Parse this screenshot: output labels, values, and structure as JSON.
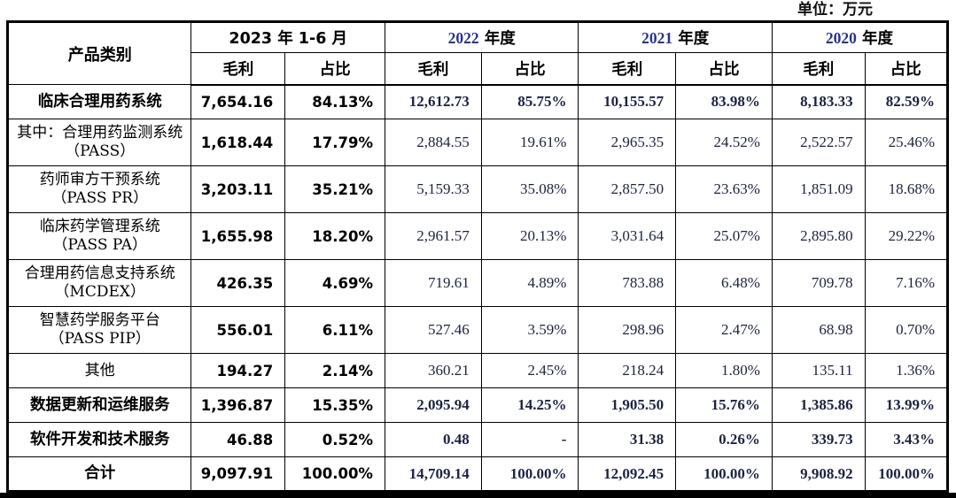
{
  "meta": {
    "unit_label": "单位：万元"
  },
  "colors": {
    "year_digit": "#27348b",
    "serif_number": "#1c2340",
    "text": "#000000",
    "border": "#000000"
  },
  "table": {
    "category_header": "产品类别",
    "periods": [
      "2023 年 1-6 月",
      "2022 年度",
      "2021 年度",
      "2020 年度"
    ],
    "subheaders": [
      "毛利",
      "占比"
    ],
    "rows": [
      {
        "label": "临床合理用药系统",
        "bold": true,
        "values": [
          "7,654.16",
          "84.13%",
          "12,612.73",
          "85.75%",
          "10,155.57",
          "83.98%",
          "8,183.33",
          "82.59%"
        ]
      },
      {
        "label": "其中：合理用药监测系统（PASS）",
        "bold": false,
        "values": [
          "1,618.44",
          "17.79%",
          "2,884.55",
          "19.61%",
          "2,965.35",
          "24.52%",
          "2,522.57",
          "25.46%"
        ]
      },
      {
        "label": "药师审方干预系统（PASS PR）",
        "bold": false,
        "values": [
          "3,203.11",
          "35.21%",
          "5,159.33",
          "35.08%",
          "2,857.50",
          "23.63%",
          "1,851.09",
          "18.68%"
        ]
      },
      {
        "label": "临床药学管理系统（PASS PA）",
        "bold": false,
        "values": [
          "1,655.98",
          "18.20%",
          "2,961.57",
          "20.13%",
          "3,031.64",
          "25.07%",
          "2,895.80",
          "29.22%"
        ]
      },
      {
        "label": "合理用药信息支持系统（MCDEX）",
        "bold": false,
        "values": [
          "426.35",
          "4.69%",
          "719.61",
          "4.89%",
          "783.88",
          "6.48%",
          "709.78",
          "7.16%"
        ]
      },
      {
        "label": "智慧药学服务平台（PASS PIP）",
        "bold": false,
        "values": [
          "556.01",
          "6.11%",
          "527.46",
          "3.59%",
          "298.96",
          "2.47%",
          "68.98",
          "0.70%"
        ]
      },
      {
        "label": "其他",
        "bold": false,
        "values": [
          "194.27",
          "2.14%",
          "360.21",
          "2.45%",
          "218.24",
          "1.80%",
          "135.11",
          "1.36%"
        ]
      },
      {
        "label": "数据更新和运维服务",
        "bold": true,
        "values": [
          "1,396.87",
          "15.35%",
          "2,095.94",
          "14.25%",
          "1,905.50",
          "15.76%",
          "1,385.86",
          "13.99%"
        ]
      },
      {
        "label": "软件开发和技术服务",
        "bold": true,
        "values": [
          "46.88",
          "0.52%",
          "0.48",
          "-",
          "31.38",
          "0.26%",
          "339.73",
          "3.43%"
        ]
      },
      {
        "label": "合计",
        "bold": true,
        "values": [
          "9,097.91",
          "100.00%",
          "14,709.14",
          "100.00%",
          "12,092.45",
          "100.00%",
          "9,908.92",
          "100.00%"
        ]
      }
    ]
  }
}
